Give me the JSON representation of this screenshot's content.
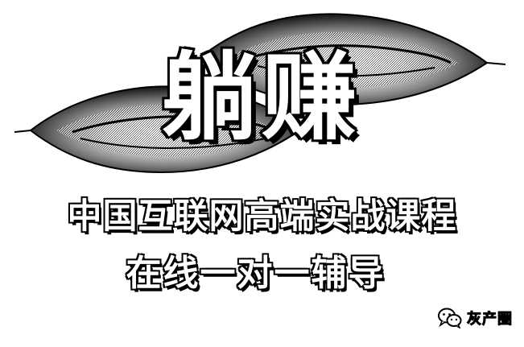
{
  "image": {
    "title": "躺赚",
    "subtitle_line1": "中国互联网高端实战课程",
    "subtitle_line2": "在线一对一辅导",
    "watermark_text": "灰产圈",
    "colors": {
      "background": "#ffffff",
      "ink": "#000000",
      "fill": "#ffffff"
    },
    "icons": {
      "decoration": "pod-shape-artwork",
      "watermark_icon": "wechat-icon"
    }
  }
}
